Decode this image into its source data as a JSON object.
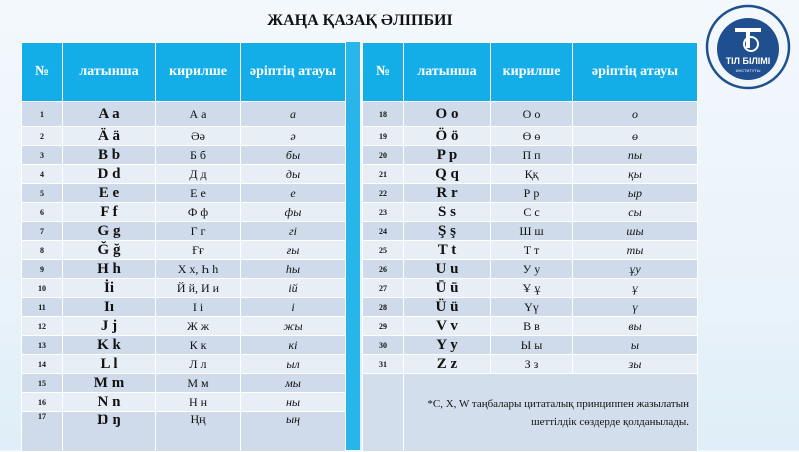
{
  "title": "ЖАҢА ҚАЗАҚ ӘЛІПБИІ",
  "headers": {
    "num": "№",
    "latin": "латынша",
    "cyrillic": "кирилше",
    "name": "әріптің атауы"
  },
  "logo": {
    "text_arc": "АХМЕТ БАЙТҰРСЫНҰЛЫ атындағы",
    "main": "ТІЛ БІЛІМІ",
    "sub": "ИНСТИТУТЫ",
    "color": "#1f4f8f"
  },
  "left_rows": [
    {
      "n": "1",
      "lat": "A a",
      "cyr": "А а",
      "name": "a"
    },
    {
      "n": "2",
      "lat": "Ä ä",
      "cyr": "Әә",
      "name": "ә"
    },
    {
      "n": "3",
      "lat": "B b",
      "cyr": "Б б",
      "name": "бы"
    },
    {
      "n": "4",
      "lat": "D d",
      "cyr": "Д д",
      "name": "ды"
    },
    {
      "n": "5",
      "lat": "E e",
      "cyr": "Е е",
      "name": "е"
    },
    {
      "n": "6",
      "lat": "F f",
      "cyr": "Ф ф",
      "name": "фы"
    },
    {
      "n": "7",
      "lat": "G g",
      "cyr": "Г г",
      "name": "гі"
    },
    {
      "n": "8",
      "lat": "Ğ ğ",
      "cyr": "Ғғ",
      "name": "ғы"
    },
    {
      "n": "9",
      "lat": "H h",
      "cyr": "Х х, Һ һ",
      "name": "һы"
    },
    {
      "n": "10",
      "lat": "İi",
      "cyr": "Й й, И и",
      "name": "ій"
    },
    {
      "n": "11",
      "lat": "Iı",
      "cyr": "І і",
      "name": "і"
    },
    {
      "n": "12",
      "lat": "J j",
      "cyr": "Ж ж",
      "name": "жы"
    },
    {
      "n": "13",
      "lat": "K k",
      "cyr": "К к",
      "name": "кі"
    },
    {
      "n": "14",
      "lat": "L l",
      "cyr": "Л л",
      "name": "ыл"
    },
    {
      "n": "15",
      "lat": "M m",
      "cyr": "М м",
      "name": "мы"
    },
    {
      "n": "16",
      "lat": "N n",
      "cyr": "Н н",
      "name": "ны"
    },
    {
      "n": "17",
      "lat": "Ŋ ŋ",
      "cyr": "Ңң",
      "name": "ың"
    }
  ],
  "right_rows": [
    {
      "n": "18",
      "lat": "O o",
      "cyr": "О о",
      "name": "о"
    },
    {
      "n": "19",
      "lat": "Ö ö",
      "cyr": "Ө ө",
      "name": "ө"
    },
    {
      "n": "20",
      "lat": "P p",
      "cyr": "П п",
      "name": "пы"
    },
    {
      "n": "21",
      "lat": "Q q",
      "cyr": "Ққ",
      "name": "қы"
    },
    {
      "n": "22",
      "lat": "R r",
      "cyr": "Р р",
      "name": "ыр"
    },
    {
      "n": "23",
      "lat": "S s",
      "cyr": "С с",
      "name": "сы"
    },
    {
      "n": "24",
      "lat": "Ş ş",
      "cyr": "Ш ш",
      "name": "шы"
    },
    {
      "n": "25",
      "lat": "T t",
      "cyr": "Т т",
      "name": "ты"
    },
    {
      "n": "26",
      "lat": "U u",
      "cyr": "У у",
      "name": "ұу"
    },
    {
      "n": "27",
      "lat": "Ū ū",
      "cyr": "Ұ ұ",
      "name": "ұ"
    },
    {
      "n": "28",
      "lat": "Ü ü",
      "cyr": "Үү",
      "name": "ү"
    },
    {
      "n": "29",
      "lat": "V v",
      "cyr": "В в",
      "name": "вы"
    },
    {
      "n": "30",
      "lat": "Y y",
      "cyr": "Ы ы",
      "name": "ы"
    },
    {
      "n": "31",
      "lat": "Z z",
      "cyr": "З з",
      "name": "зы"
    }
  ],
  "note": {
    "line1": "*C, X, W таңбалары цитаталық принциппен жазылатын",
    "line2": "шеттілдік  сөздерде қолданылады."
  }
}
